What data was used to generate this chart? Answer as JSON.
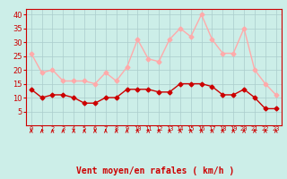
{
  "hours": [
    0,
    1,
    2,
    3,
    4,
    5,
    6,
    7,
    8,
    9,
    10,
    11,
    12,
    13,
    14,
    15,
    16,
    17,
    18,
    19,
    20,
    21,
    22,
    23
  ],
  "wind_mean": [
    13,
    10,
    11,
    11,
    10,
    8,
    8,
    10,
    10,
    13,
    13,
    13,
    12,
    12,
    15,
    15,
    15,
    14,
    11,
    11,
    13,
    10,
    6,
    6
  ],
  "wind_gust": [
    26,
    19,
    20,
    16,
    16,
    16,
    15,
    19,
    16,
    21,
    31,
    24,
    23,
    31,
    35,
    32,
    40,
    31,
    26,
    26,
    35,
    20,
    15,
    11
  ],
  "mean_color": "#cc0000",
  "gust_color": "#ffaaaa",
  "bg_color": "#cceee8",
  "grid_color": "#aacccc",
  "xlabel": "Vent moyen/en rafales ( km/h )",
  "xlabel_color": "#cc0000",
  "xlim": [
    -0.5,
    23.5
  ],
  "ylim": [
    0,
    42
  ],
  "yticks": [
    5,
    10,
    15,
    20,
    25,
    30,
    35,
    40
  ],
  "marker_size": 2.5,
  "line_width": 1.0
}
